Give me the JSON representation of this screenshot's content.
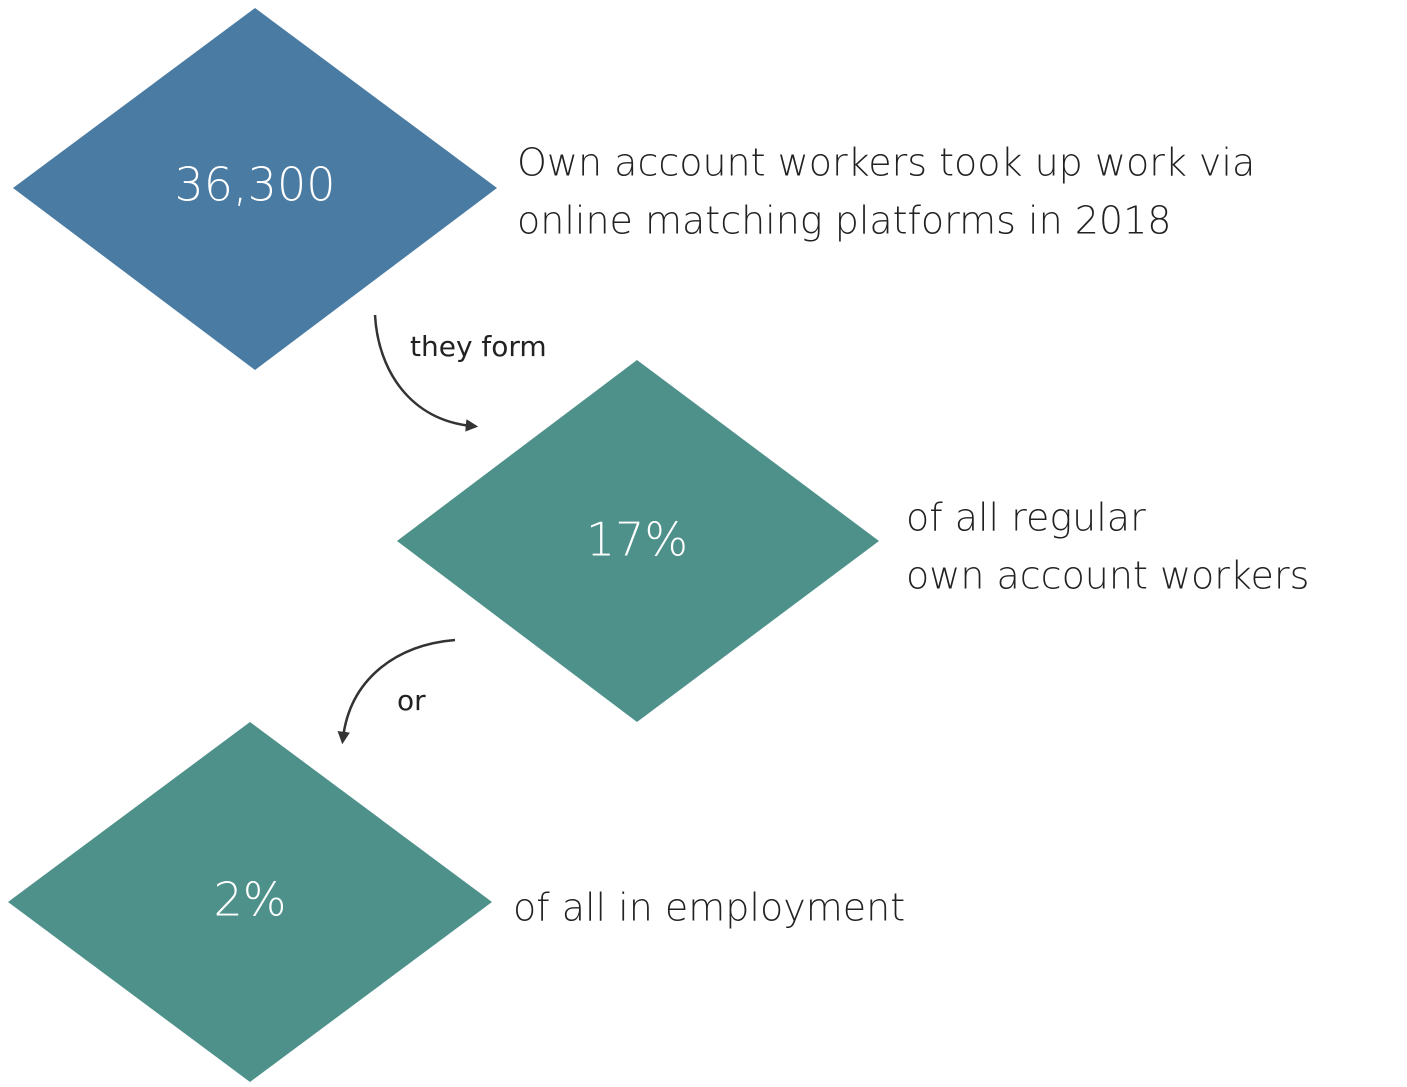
{
  "nodes": [
    {
      "value": "36,300",
      "label": [
        "Own account workers took up work via",
        "online matching platforms in 2018"
      ],
      "color": "#4a7ba3"
    },
    {
      "value": "17%",
      "label": [
        "of all regular",
        "own account workers"
      ],
      "color": "#4e918b"
    },
    {
      "value": "2%",
      "label": [
        "of all in employment"
      ],
      "color": "#4e918b"
    }
  ],
  "connectors": [
    {
      "label": "they form"
    },
    {
      "label": "or"
    }
  ]
}
